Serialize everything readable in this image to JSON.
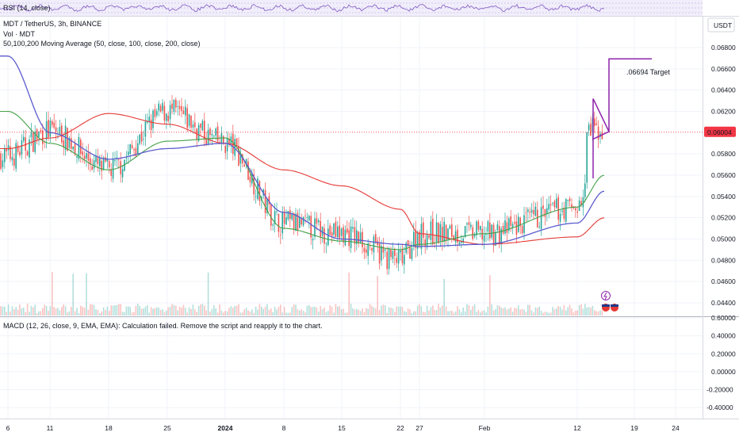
{
  "header": {
    "rsi_label": "RSI (14, close)",
    "symbol_line": "MDT / TetherUS, 3h, BINANCE",
    "vol_label": "Vol · MDT",
    "ma_label": "50,100,200 Moving Average (50, close, 100, close, 200, close)",
    "currency": "USDT"
  },
  "macd": {
    "message": "MACD (12, 26, close, 9, EMA, EMA): Calculation failed. Remove the script and reapply it to the chart."
  },
  "annotations": {
    "target_label": ".06694 Target"
  },
  "price_badge": {
    "value": "0.06004",
    "color": "#f23645"
  },
  "colors": {
    "up": "#26a69a",
    "down": "#ef5350",
    "ma50": "#43a047",
    "ma100": "#5c5ccf",
    "ma200": "#e53935",
    "drawing": "#8e24aa",
    "target_text": "#2962ff"
  },
  "chart_data": [
    {
      "type": "line",
      "title": "MDT / TetherUS, 3h, BINANCE",
      "series": [
        {
          "name": "Price",
          "kind": "candlestick",
          "x": [
            "Dec 6",
            "Dec 11",
            "Dec 18",
            "Dec 25",
            "2024",
            "Jan 8",
            "Jan 15",
            "Jan 22",
            "Jan 27",
            "Feb",
            "Feb 12",
            "Feb 14"
          ],
          "values": [
            0.0578,
            0.0602,
            0.0565,
            0.062,
            0.059,
            0.0515,
            0.0505,
            0.048,
            0.0505,
            0.0505,
            0.053,
            0.06
          ]
        },
        {
          "name": "MA 50",
          "x": [
            "Dec 6",
            "Dec 11",
            "Dec 18",
            "Dec 25",
            "2024",
            "Jan 8",
            "Jan 15",
            "Jan 22",
            "Jan 27",
            "Feb",
            "Feb 12",
            "Feb 14"
          ],
          "values": [
            0.062,
            0.059,
            0.0565,
            0.0592,
            0.0595,
            0.051,
            0.0498,
            0.049,
            0.0495,
            0.0505,
            0.053,
            0.056
          ]
        },
        {
          "name": "MA 100",
          "x": [
            "Dec 6",
            "Dec 11",
            "Dec 18",
            "Dec 25",
            "2024",
            "Jan 8",
            "Jan 15",
            "Jan 22",
            "Jan 27",
            "Feb",
            "Feb 12",
            "Feb 14"
          ],
          "values": [
            0.0672,
            0.06,
            0.0575,
            0.0585,
            0.059,
            0.0525,
            0.05,
            0.0495,
            0.0493,
            0.0495,
            0.0515,
            0.0545
          ]
        },
        {
          "name": "MA 200",
          "x": [
            "Dec 6",
            "Dec 11",
            "Dec 18",
            "Dec 25",
            "2024",
            "Jan 8",
            "Jan 15",
            "Jan 22",
            "Jan 27",
            "Feb",
            "Feb 12",
            "Feb 14"
          ],
          "values": [
            0.0585,
            0.0595,
            0.0618,
            0.0608,
            0.059,
            0.0565,
            0.055,
            0.0528,
            0.0505,
            0.0495,
            0.0502,
            0.052
          ]
        }
      ],
      "x_ticks": [
        "6",
        "11",
        "18",
        "25",
        "2024",
        "8",
        "15",
        "22",
        "27",
        "Feb",
        "12",
        "19",
        "24"
      ],
      "y_ticks": [
        "0.06800",
        "0.06600",
        "0.06400",
        "0.06200",
        "0.05800",
        "0.05600",
        "0.05400",
        "0.05200",
        "0.05000",
        "0.04800",
        "0.04600",
        "0.04400"
      ],
      "ylim": [
        0.0428,
        0.0704
      ],
      "last_price": 0.06004,
      "target": 0.06694,
      "grid": true
    },
    {
      "type": "bar",
      "title": "MACD (12, 26, close, 9, EMA, EMA)",
      "y_ticks": [
        "0.60000",
        "0.40000",
        "0.20000",
        "0.00000",
        "-0.20000",
        "-0.40000"
      ],
      "ylim": [
        -0.5,
        0.6
      ]
    }
  ]
}
